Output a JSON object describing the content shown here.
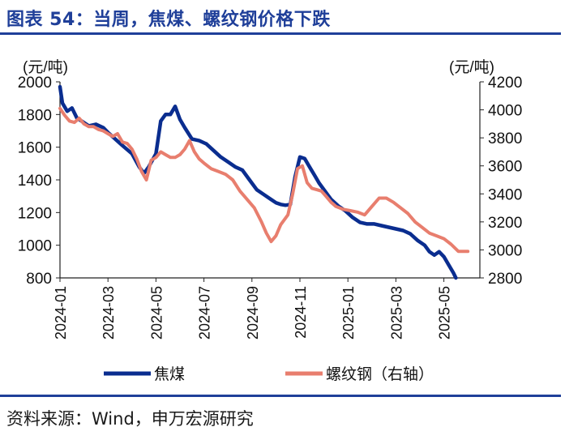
{
  "header": {
    "title": "图表 54：当周，焦煤、螺纹钢价格下跌"
  },
  "footer": {
    "source": "资料来源：Wind，申万宏源研究"
  },
  "chart_data": {
    "type": "line",
    "title": "当周，焦煤、螺纹钢价格下跌",
    "left_axis": {
      "label": "(元/吨)",
      "ylim": [
        800,
        2000
      ],
      "ticks": [
        "2000",
        "1800",
        "1600",
        "1400",
        "1200",
        "1000",
        "800"
      ]
    },
    "right_axis": {
      "label": "(元/吨)",
      "ylim": [
        2800,
        4200
      ],
      "ticks": [
        "4200",
        "4000",
        "3800",
        "3600",
        "3400",
        "3200",
        "3000",
        "2800"
      ]
    },
    "x_ticks": [
      "2024-01",
      "2024-03",
      "2024-05",
      "2024-07",
      "2024-09",
      "2024-11",
      "2025-01",
      "2025-03",
      "2025-05"
    ],
    "x_range": [
      0,
      17.5
    ],
    "legend_position": "bottom",
    "series": [
      {
        "name": "焦煤",
        "axis": "left",
        "color": "#0a2d8f",
        "x": [
          0,
          0.1,
          0.3,
          0.5,
          0.7,
          0.9,
          1.2,
          1.5,
          1.8,
          2.0,
          2.3,
          2.6,
          3.0,
          3.3,
          3.5,
          3.7,
          4.0,
          4.2,
          4.4,
          4.6,
          4.8,
          5.0,
          5.2,
          5.5,
          5.8,
          6.1,
          6.4,
          6.7,
          7.0,
          7.3,
          7.6,
          7.9,
          8.2,
          8.5,
          8.8,
          9.0,
          9.2,
          9.4,
          9.6,
          9.8,
          10.0,
          10.2,
          10.4,
          10.6,
          10.8,
          11.0,
          11.3,
          11.6,
          11.9,
          12.2,
          12.5,
          12.8,
          13.1,
          13.4,
          13.7,
          14.0,
          14.3,
          14.6,
          14.9,
          15.2,
          15.4,
          15.6,
          15.8,
          16.0,
          16.2,
          16.4,
          16.5
        ],
        "values": [
          1970,
          1870,
          1820,
          1840,
          1780,
          1760,
          1730,
          1740,
          1720,
          1690,
          1650,
          1610,
          1560,
          1480,
          1440,
          1480,
          1560,
          1760,
          1800,
          1800,
          1850,
          1770,
          1720,
          1650,
          1640,
          1620,
          1580,
          1540,
          1510,
          1480,
          1460,
          1400,
          1340,
          1310,
          1280,
          1260,
          1250,
          1245,
          1250,
          1420,
          1540,
          1530,
          1480,
          1430,
          1380,
          1340,
          1280,
          1240,
          1210,
          1170,
          1140,
          1130,
          1130,
          1120,
          1110,
          1100,
          1090,
          1070,
          1030,
          1000,
          960,
          940,
          960,
          930,
          880,
          830,
          800
        ]
      },
      {
        "name": "螺纹钢（右轴）",
        "axis": "right",
        "color": "#e87e6e",
        "x": [
          0,
          0.2,
          0.4,
          0.6,
          0.8,
          1.0,
          1.2,
          1.4,
          1.6,
          1.8,
          2.0,
          2.2,
          2.4,
          2.6,
          2.8,
          3.0,
          3.2,
          3.4,
          3.6,
          3.8,
          4.0,
          4.2,
          4.4,
          4.6,
          4.8,
          5.0,
          5.2,
          5.4,
          5.6,
          5.8,
          6.0,
          6.3,
          6.6,
          6.9,
          7.2,
          7.5,
          7.8,
          8.1,
          8.4,
          8.6,
          8.8,
          9.0,
          9.2,
          9.5,
          9.7,
          9.9,
          10.1,
          10.3,
          10.5,
          10.7,
          10.9,
          11.1,
          11.3,
          11.5,
          11.8,
          12.1,
          12.4,
          12.7,
          13.0,
          13.3,
          13.6,
          13.9,
          14.2,
          14.5,
          14.8,
          15.1,
          15.4,
          15.7,
          16.0,
          16.3,
          16.6,
          17.0
        ],
        "values": [
          4010,
          3960,
          3920,
          3910,
          3940,
          3900,
          3880,
          3880,
          3860,
          3850,
          3830,
          3810,
          3830,
          3770,
          3760,
          3720,
          3650,
          3560,
          3500,
          3640,
          3660,
          3700,
          3680,
          3660,
          3660,
          3680,
          3720,
          3780,
          3700,
          3650,
          3620,
          3580,
          3560,
          3540,
          3500,
          3420,
          3360,
          3300,
          3200,
          3120,
          3060,
          3100,
          3180,
          3250,
          3400,
          3580,
          3600,
          3480,
          3440,
          3430,
          3420,
          3380,
          3340,
          3310,
          3290,
          3280,
          3270,
          3250,
          3310,
          3370,
          3370,
          3340,
          3300,
          3260,
          3200,
          3160,
          3120,
          3100,
          3080,
          3040,
          2990,
          2990
        ]
      }
    ]
  }
}
